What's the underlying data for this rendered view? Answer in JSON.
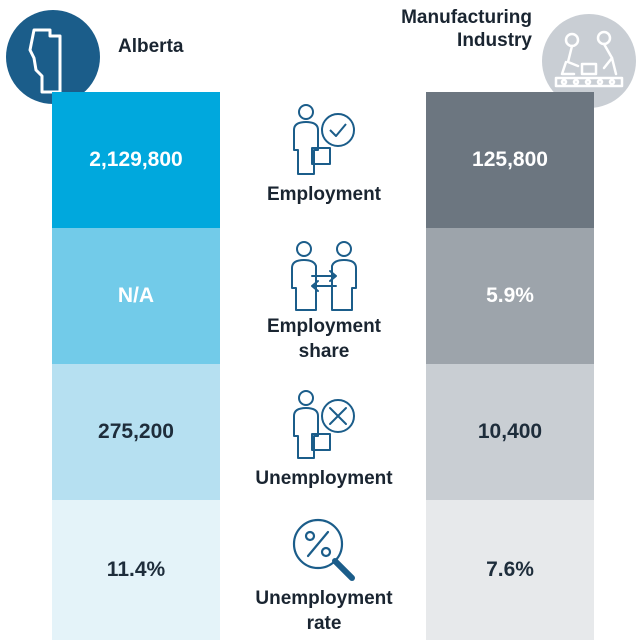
{
  "header": {
    "left_title": "Alberta",
    "right_title_line1": "Manufacturing",
    "right_title_line2": "Industry",
    "left_icon": "alberta-map-icon",
    "right_icon": "robot-arm-factory-icon"
  },
  "metrics": [
    {
      "label_line1": "Employment",
      "label_line2": "",
      "icon": "person-check-icon",
      "alberta": "2,129,800",
      "industry": "125,800"
    },
    {
      "label_line1": "Employment",
      "label_line2": "share",
      "icon": "people-exchange-icon",
      "alberta": "N/A",
      "industry": "5.9%"
    },
    {
      "label_line1": "Unemployment",
      "label_line2": "",
      "icon": "person-x-icon",
      "alberta": "275,200",
      "industry": "10,400"
    },
    {
      "label_line1": "Unemployment",
      "label_line2": "rate",
      "icon": "percent-magnifier-icon",
      "alberta": "11.4%",
      "industry": "7.6%"
    }
  ],
  "colors": {
    "alberta_rows": [
      "#00a8dd",
      "#72cbe9",
      "#b6e0f1",
      "#e4f3f9"
    ],
    "industry_rows": [
      "#6c7680",
      "#9da4ab",
      "#c9ced3",
      "#e7e9eb"
    ],
    "alberta_text": [
      "#ffffff",
      "#ffffff",
      "#1e2d3b",
      "#1e2d3b"
    ],
    "industry_text": [
      "#ffffff",
      "#ffffff",
      "#1e2d3b",
      "#1e2d3b"
    ],
    "icon_stroke": "#1b5d8a",
    "alberta_emblem": "#1b5d8a",
    "industry_emblem": "#c9ced4"
  }
}
